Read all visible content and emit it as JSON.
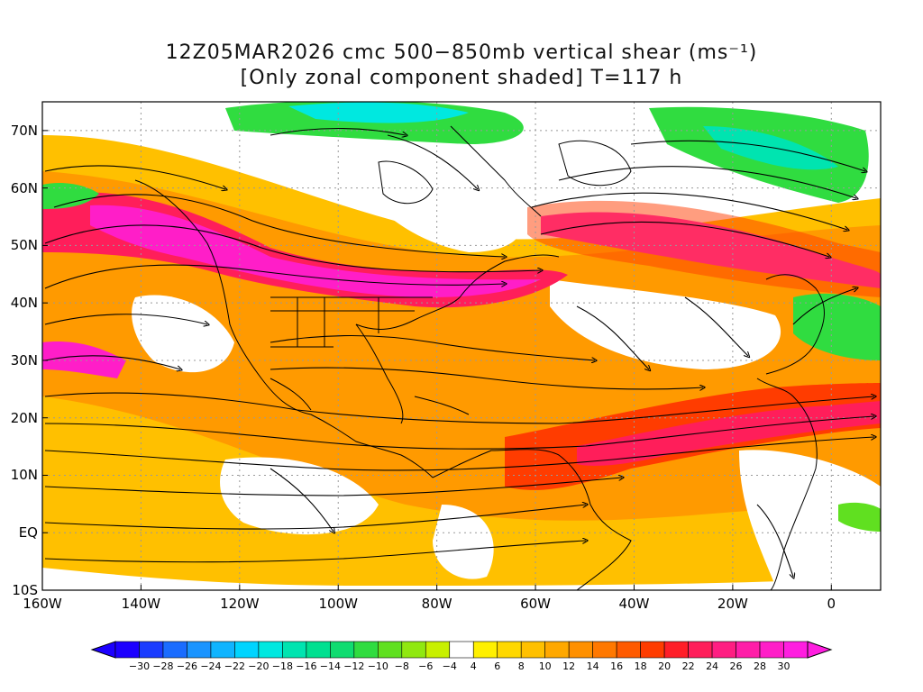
{
  "title": {
    "line1": "12Z05MAR2026 cmc 500−850mb vertical shear (ms⁻¹)",
    "line2": "[Only zonal component shaded] T=117 h"
  },
  "map": {
    "lat_labels": [
      "70N",
      "60N",
      "50N",
      "40N",
      "30N",
      "20N",
      "10N",
      "EQ",
      "10S"
    ],
    "lat_values": [
      70,
      60,
      50,
      40,
      30,
      20,
      10,
      0,
      -10
    ],
    "lon_labels": [
      "160W",
      "140W",
      "120W",
      "100W",
      "80W",
      "60W",
      "40W",
      "20W",
      "0"
    ],
    "lon_values": [
      -160,
      -140,
      -120,
      -100,
      -80,
      -60,
      -40,
      -20,
      0
    ],
    "extent": {
      "lon_min": -160,
      "lon_max": 10,
      "lat_min": -10,
      "lat_max": 75
    },
    "grid": "dotted",
    "overlay": "streamlines"
  },
  "colorbar": {
    "labels": [
      "−30",
      "−28",
      "−26",
      "−24",
      "−22",
      "−20",
      "−18",
      "−16",
      "−14",
      "−12",
      "−10",
      "−8",
      "−6",
      "−4",
      "4",
      "6",
      "8",
      "10",
      "12",
      "14",
      "16",
      "18",
      "20",
      "22",
      "24",
      "26",
      "28",
      "30"
    ],
    "colors": [
      "#1c00ff",
      "#1a3cff",
      "#1a6cff",
      "#1a94ff",
      "#10b4ff",
      "#00d4ff",
      "#00e8e0",
      "#00e4b0",
      "#00e090",
      "#10dc70",
      "#30dc40",
      "#60e020",
      "#90e810",
      "#c8f000",
      "#ffffff",
      "#fff000",
      "#ffd800",
      "#ffc000",
      "#ffa800",
      "#ff9000",
      "#ff7800",
      "#ff5a00",
      "#ff3c00",
      "#ff1e28",
      "#ff1e5a",
      "#ff1e82",
      "#ff1ea8",
      "#ff1ec8",
      "#ff1ee0"
    ]
  }
}
